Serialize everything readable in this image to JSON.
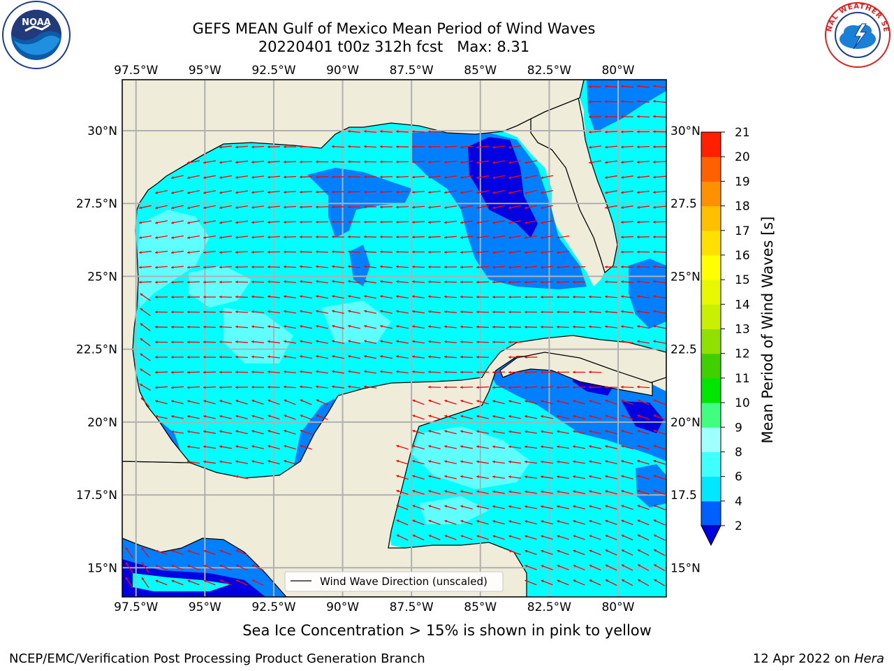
{
  "title_line1": "GEFS MEAN Gulf of Mexico Mean Period of Wind Waves",
  "title_line2": "20220401 t00z 312h fcst   Max: 8.31",
  "lon_ticks": [
    "97.5°W",
    "95°W",
    "92.5°W",
    "90°W",
    "87.5°W",
    "85°W",
    "82.5°W",
    "80°W"
  ],
  "lat_ticks_left": [
    "30°N",
    "27.5°N",
    "25°N",
    "22.5°N",
    "20°N",
    "17.5°N",
    "15°N"
  ],
  "lat_ticks_right": [
    "30°N",
    "27.5",
    "25°N",
    "22.5",
    "20°N",
    "17.5",
    "15°N"
  ],
  "legend_label": "Wind Wave Direction (unscaled)",
  "colorbar": {
    "label": "Mean Period of Wind Waves [s]",
    "ticks": [
      "2",
      "4",
      "6",
      "8",
      "9",
      "10",
      "11",
      "12",
      "13",
      "14",
      "15",
      "16",
      "17",
      "18",
      "19",
      "20",
      "21"
    ],
    "colors": [
      "#0060ff",
      "#00e8ff",
      "#40ffff",
      "#a0ffff",
      "#40ff80",
      "#00e600",
      "#40d000",
      "#90e000",
      "#c8f000",
      "#e8f800",
      "#ffff00",
      "#ffe000",
      "#ffc000",
      "#ff9000",
      "#ff6000",
      "#ff2000"
    ],
    "under_color": "#0000e0"
  },
  "colors": {
    "land": "#efecda",
    "wave_4_6": "#00ffff",
    "wave_2_4": "#0080ff",
    "wave_under_2": "#0000e0",
    "wave_6_8": "#60ffff",
    "arrow": "#ff0000"
  },
  "logos": {
    "left": "NOAA",
    "right": "NATIONAL WEATHER SERVICE"
  },
  "sea_ice_note": "Sea Ice Concentration > 15% is shown in pink to yellow",
  "credit": "NCEP/EMC/Verification Post Processing Product Generation Branch",
  "stamp_date": "12 Apr 2022 on ",
  "stamp_host": "Hera"
}
